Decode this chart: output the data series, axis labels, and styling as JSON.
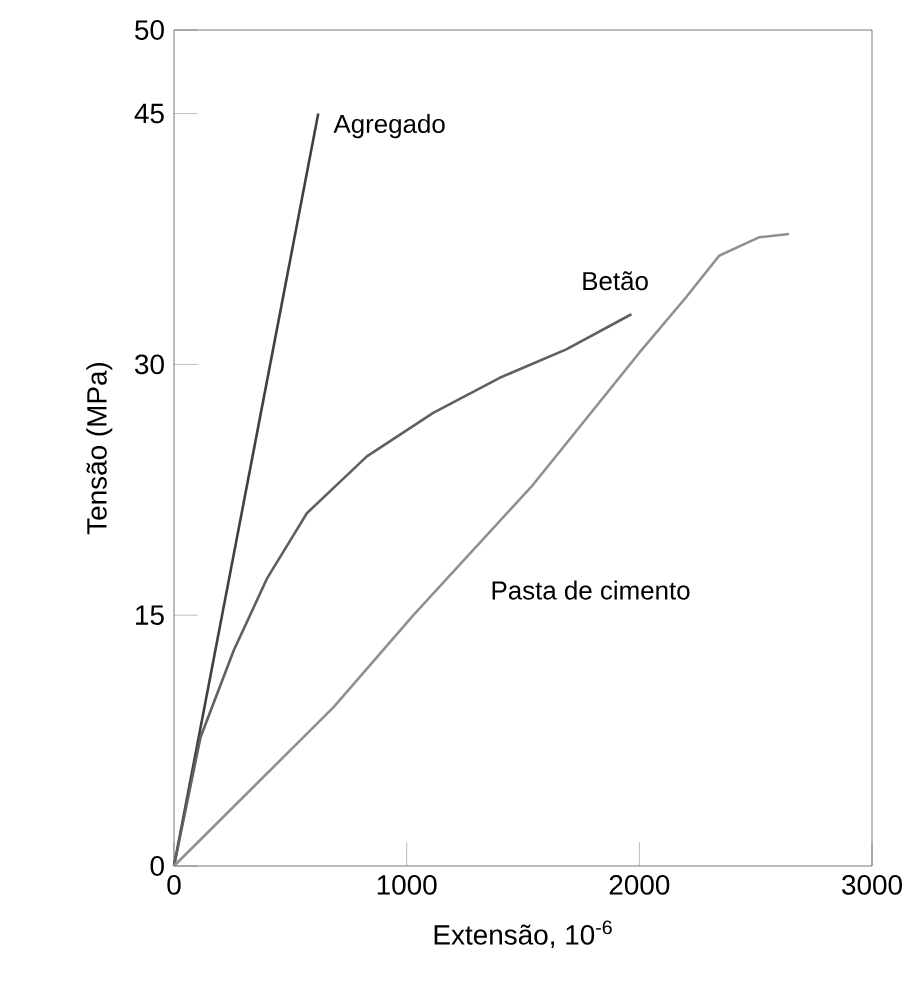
{
  "chart_data": {
    "type": "line",
    "xlabel": "Extensão, 10$^{-6}$",
    "ylabel": "Tensão (MPa)",
    "xlim": [
      0,
      3000
    ],
    "xticks": [
      0,
      1000,
      2000,
      3000
    ],
    "ylim": [
      0,
      50
    ],
    "yticks": [
      0,
      15,
      30,
      45,
      50
    ],
    "grid": false,
    "legend": false,
    "marker": "none",
    "line_style": "solid",
    "series": [
      {
        "name": "Agregado",
        "color": "#404040",
        "x": [
          0,
          620
        ],
        "values": [
          0,
          45
        ]
      },
      {
        "name": "Betão",
        "color": "#606060",
        "x": [
          0,
          114,
          257,
          400,
          571,
          829,
          1114,
          1400,
          1686,
          1966
        ],
        "values": [
          0,
          7.7,
          12.9,
          17.2,
          21.1,
          24.5,
          27.1,
          29.2,
          30.9,
          33.0
        ]
      },
      {
        "name": "Pasta de cimento",
        "color": "#909090",
        "x": [
          0,
          686,
          1029,
          1543,
          2000,
          2200,
          2343,
          2514,
          2643
        ],
        "values": [
          0,
          9.5,
          15.0,
          22.8,
          30.7,
          34.0,
          36.5,
          37.6,
          37.8
        ]
      }
    ]
  }
}
